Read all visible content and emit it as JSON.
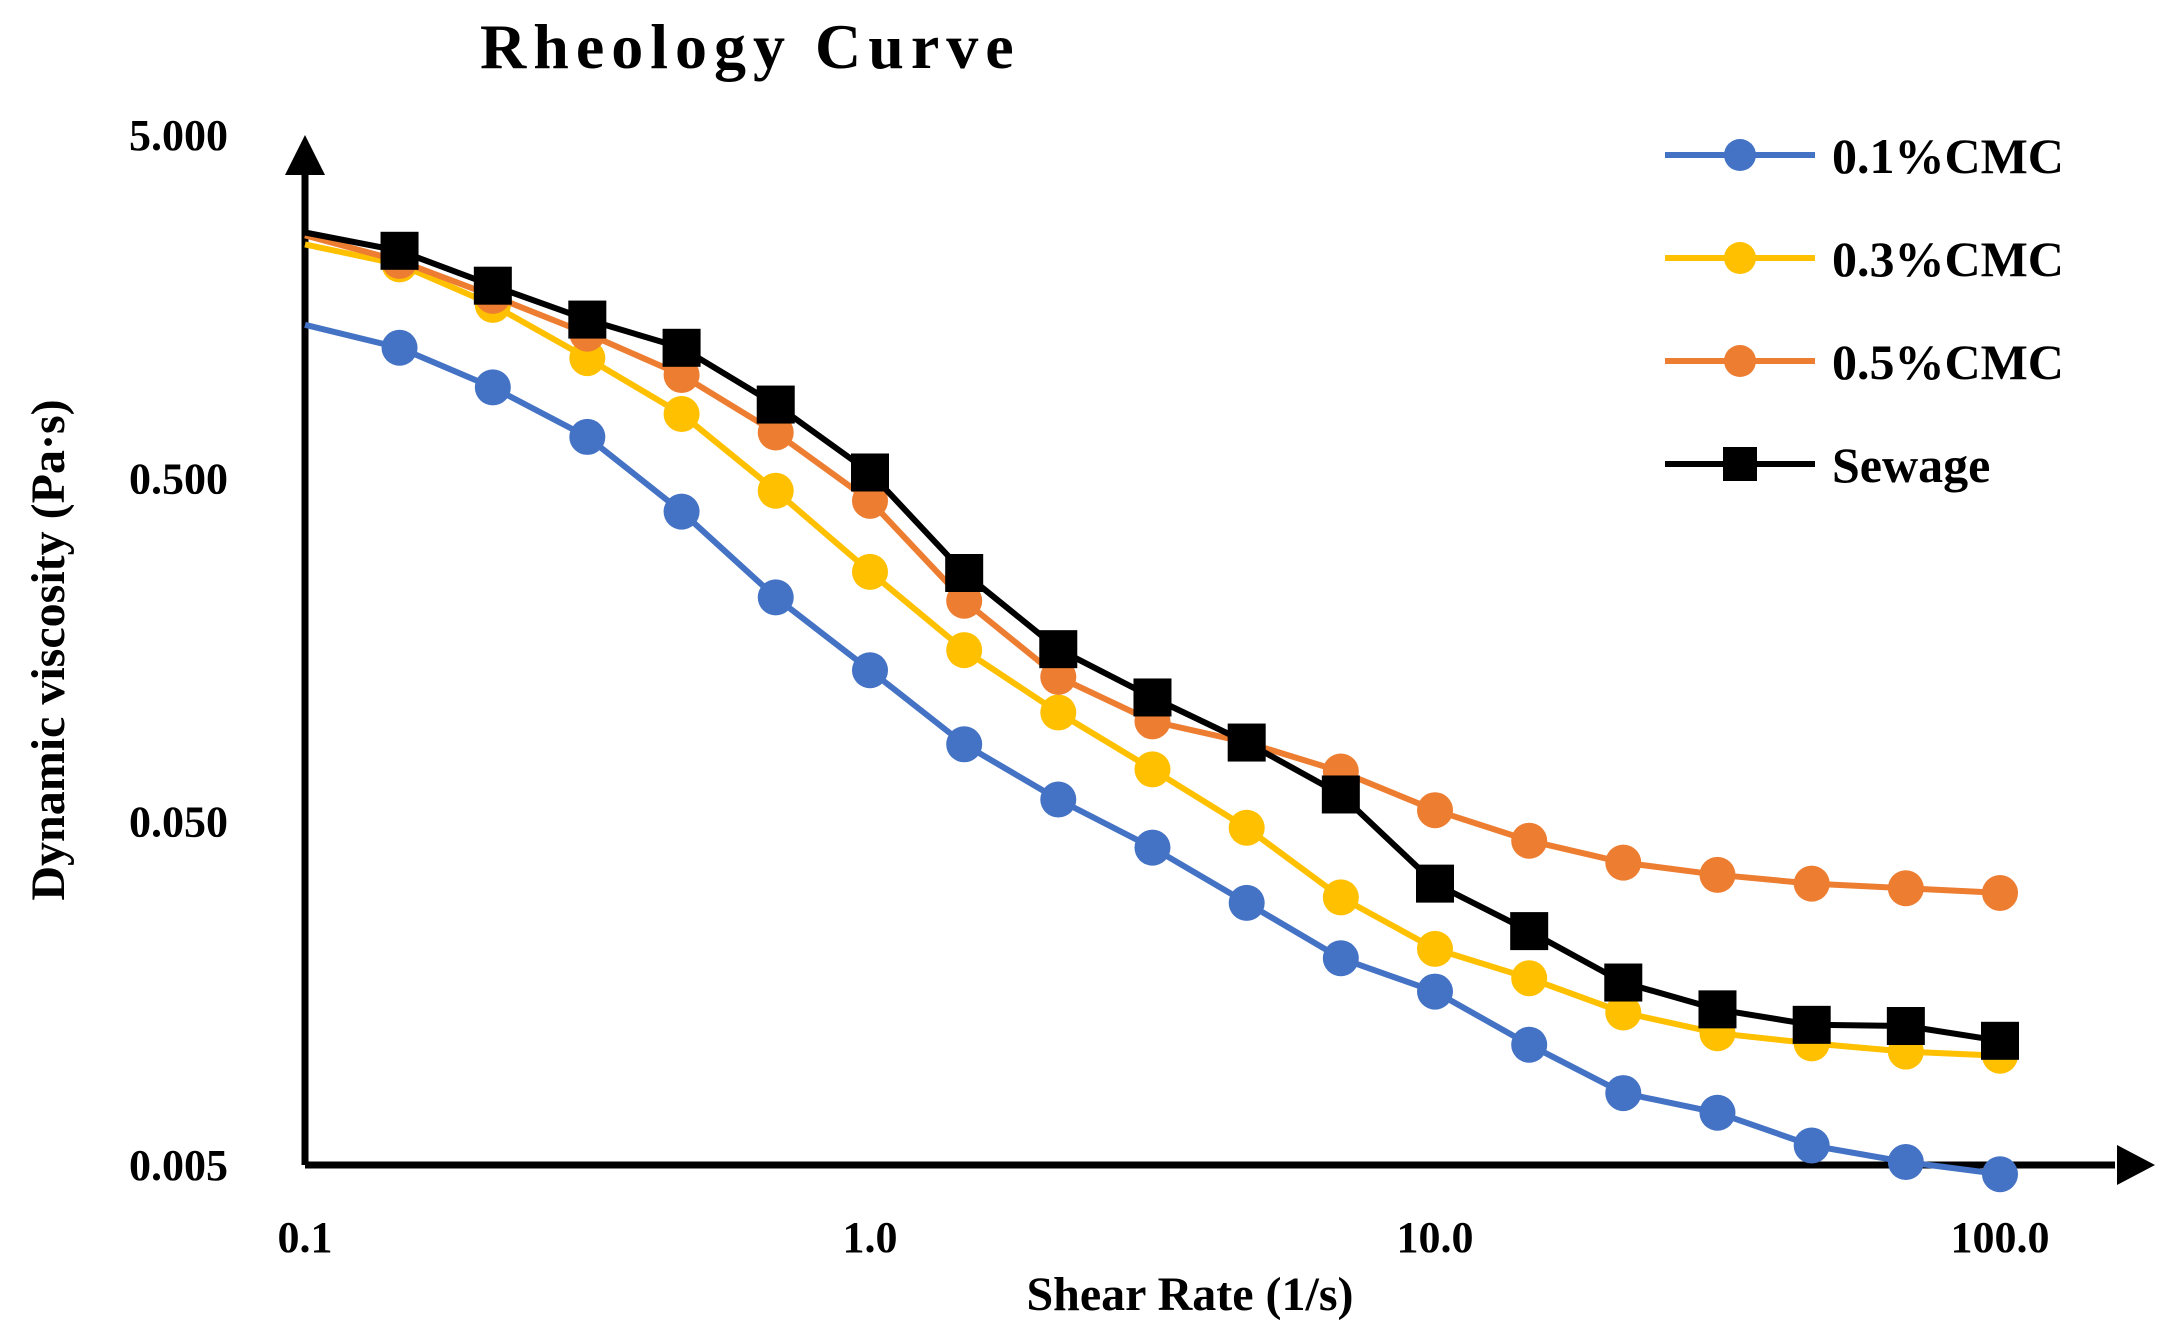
{
  "chart_data": {
    "type": "line",
    "title": "Rheology Curve",
    "xlabel": "Shear Rate (1/s)",
    "ylabel": "Dynamic viscosity (Pa·s)",
    "x_scale": "log",
    "y_scale": "log",
    "xlim": [
      0.1,
      100
    ],
    "ylim": [
      0.005,
      5
    ],
    "x_ticks": [
      "0.1",
      "1.0",
      "10.0",
      "100.0"
    ],
    "y_ticks": [
      "5.000",
      "0.500",
      "0.050",
      "0.005"
    ],
    "grid": false,
    "legend_position": "top-right",
    "x": [
      0.147,
      0.215,
      0.316,
      0.464,
      0.681,
      1.0,
      1.468,
      2.154,
      3.162,
      4.642,
      6.813,
      10.0,
      14.68,
      21.54,
      31.62,
      46.42,
      68.13,
      100.0
    ],
    "series": [
      {
        "name": "0.1%CMC",
        "color": "#4472C4",
        "marker": "circle",
        "start": [
          0.1,
          1.4
        ],
        "values": [
          1.2,
          0.92,
          0.66,
          0.4,
          0.225,
          0.138,
          0.084,
          0.058,
          0.042,
          0.029,
          0.02,
          0.016,
          0.0112,
          0.0081,
          0.0071,
          0.0057,
          0.0051,
          0.0047
        ]
      },
      {
        "name": "0.3%CMC",
        "color": "#FFC000",
        "marker": "circle",
        "start": [
          0.1,
          2.4
        ],
        "values": [
          2.1,
          1.6,
          1.12,
          0.77,
          0.46,
          0.267,
          0.158,
          0.104,
          0.071,
          0.048,
          0.0301,
          0.0213,
          0.0175,
          0.0139,
          0.0121,
          0.0113,
          0.0107,
          0.0104
        ]
      },
      {
        "name": "0.5%CMC",
        "color": "#ED7D31",
        "marker": "circle",
        "start": [
          0.1,
          2.55
        ],
        "values": [
          2.15,
          1.7,
          1.32,
          1.0,
          0.68,
          0.43,
          0.22,
          0.132,
          0.098,
          0.085,
          0.07,
          0.054,
          0.044,
          0.038,
          0.035,
          0.033,
          0.032,
          0.031
        ]
      },
      {
        "name": "Sewage",
        "color": "#000000",
        "marker": "square",
        "start": [
          0.1,
          2.6
        ],
        "values": [
          2.3,
          1.82,
          1.45,
          1.2,
          0.82,
          0.52,
          0.265,
          0.159,
          0.115,
          0.085,
          0.06,
          0.033,
          0.024,
          0.017,
          0.0142,
          0.0128,
          0.0127,
          0.0115
        ]
      }
    ]
  }
}
